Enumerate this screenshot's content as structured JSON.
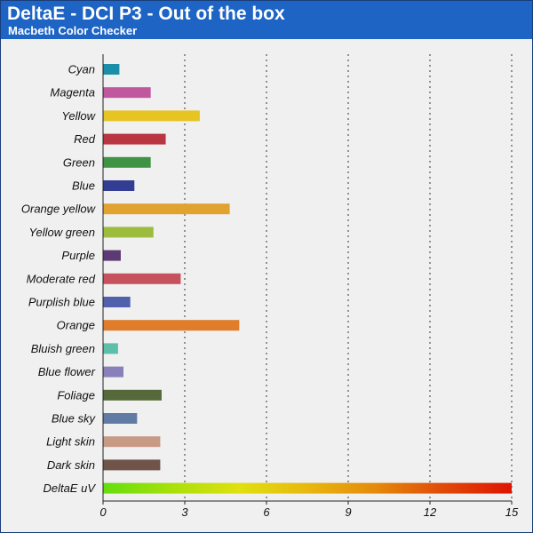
{
  "header": {
    "title": "DeltaE - DCI P3 - Out of the box",
    "subtitle": "Macbeth Color Checker"
  },
  "colors": {
    "header_bg": "#1d64c4",
    "plot_bg": "#f0f0f0"
  },
  "chart_data": {
    "type": "bar",
    "orientation": "horizontal",
    "categories": [
      "Cyan",
      "Magenta",
      "Yellow",
      "Red",
      "Green",
      "Blue",
      "Orange yellow",
      "Yellow green",
      "Purple",
      "Moderate red",
      "Purplish blue",
      "Orange",
      "Bluish green",
      "Blue flower",
      "Foliage",
      "Blue sky",
      "Light skin",
      "Dark skin",
      "DeltaE uV"
    ],
    "values": [
      0.6,
      1.75,
      3.55,
      2.3,
      1.75,
      1.15,
      4.65,
      1.85,
      0.65,
      2.85,
      1.0,
      5.0,
      0.55,
      0.75,
      2.15,
      1.25,
      2.1,
      2.1,
      15
    ],
    "bar_colors": [
      "#1b8fa7",
      "#c0579f",
      "#e6c422",
      "#b83541",
      "#3f9344",
      "#333d92",
      "#e1a230",
      "#9cbc3d",
      "#5d3a74",
      "#c5525e",
      "#5160ad",
      "#e07d2c",
      "#5bbfaa",
      "#8780bb",
      "#56693a",
      "#627ba5",
      "#c79a85",
      "#70544a",
      "gradient"
    ],
    "gradient_stops": [
      "#64de0e",
      "#a8e00a",
      "#e0e010",
      "#e8b80f",
      "#e48a0c",
      "#e04a08",
      "#de1404"
    ],
    "xlim": [
      0,
      15
    ],
    "xticks": [
      0,
      3,
      6,
      9,
      12,
      15
    ],
    "grid": "vertical dotted",
    "legend": "none",
    "title": "DeltaE - DCI P3 - Out of the box",
    "subtitle": "Macbeth Color Checker",
    "xlabel": "",
    "ylabel": ""
  }
}
